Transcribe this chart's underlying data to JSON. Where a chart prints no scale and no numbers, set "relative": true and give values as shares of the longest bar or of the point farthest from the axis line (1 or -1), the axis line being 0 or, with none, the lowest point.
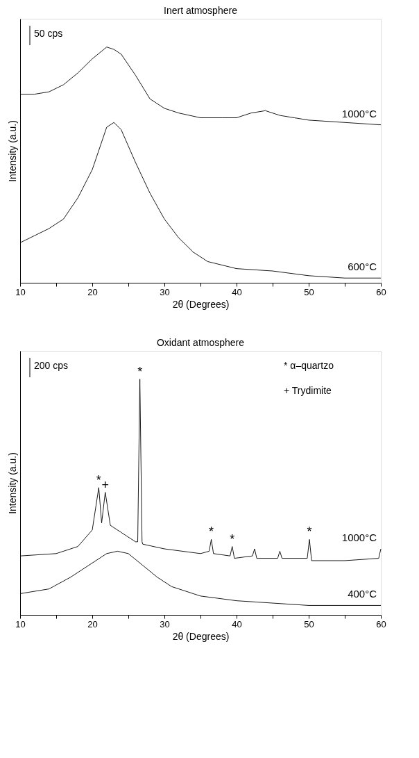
{
  "chart_data": [
    {
      "type": "line",
      "title": "Inert atmosphere",
      "xlabel": "2θ (Degrees)",
      "ylabel": "Intensity (a.u.)",
      "relative": true,
      "grid": false,
      "marker": "none",
      "line_style": "solid",
      "tick_labels": "x",
      "xlim": [
        10,
        60
      ],
      "xticks": [
        10,
        {
          "value": 15,
          "label": null
        },
        20,
        {
          "value": 25,
          "label": null
        },
        30,
        {
          "value": 35,
          "label": null
        },
        40,
        {
          "value": 45,
          "label": null
        },
        50,
        {
          "value": 55,
          "label": null
        },
        60
      ],
      "annotations": [
        "50 cps"
      ],
      "series": [
        {
          "name": "1000°C",
          "color": "#000000",
          "x": [
            10,
            12,
            14,
            16,
            18,
            20,
            22,
            23,
            24,
            26,
            28,
            30,
            32,
            35,
            38,
            40,
            42,
            44,
            46,
            48,
            50,
            55,
            60
          ],
          "values": [
            0.8,
            0.8,
            0.81,
            0.84,
            0.89,
            0.95,
            1.0,
            0.99,
            0.97,
            0.88,
            0.78,
            0.74,
            0.72,
            0.7,
            0.7,
            0.7,
            0.72,
            0.73,
            0.71,
            0.7,
            0.69,
            0.68,
            0.67
          ]
        },
        {
          "name": "600°C",
          "color": "#000000",
          "x": [
            10,
            12,
            14,
            16,
            18,
            20,
            22,
            23,
            24,
            26,
            28,
            30,
            32,
            34,
            36,
            40,
            45,
            50,
            55,
            60
          ],
          "values": [
            0.17,
            0.2,
            0.23,
            0.27,
            0.36,
            0.48,
            0.66,
            0.68,
            0.65,
            0.51,
            0.38,
            0.27,
            0.19,
            0.13,
            0.09,
            0.06,
            0.05,
            0.03,
            0.02,
            0.02
          ]
        }
      ]
    },
    {
      "type": "line",
      "title": "Oxidant atmosphere",
      "xlabel": "2θ (Degrees)",
      "ylabel": "Intensity (a.u.)",
      "relative": true,
      "grid": false,
      "marker": "none",
      "line_style": "solid",
      "tick_labels": "x",
      "xlim": [
        10,
        60
      ],
      "xticks": [
        10,
        {
          "value": 15,
          "label": null
        },
        20,
        {
          "value": 25,
          "label": null
        },
        30,
        {
          "value": 35,
          "label": null
        },
        40,
        {
          "value": 45,
          "label": null
        },
        50,
        {
          "value": 55,
          "label": null
        },
        60
      ],
      "annotations": [
        "200 cps",
        "* α–quartzo",
        "+ Trydimite",
        {
          "text": "*",
          "x": 20.9,
          "y": 0.54
        },
        {
          "text": "+",
          "x": 21.8,
          "y": 0.52
        },
        {
          "text": "*",
          "x": 26.6,
          "y": 1.0
        },
        {
          "text": "*",
          "x": 36.5,
          "y": 0.32
        },
        {
          "text": "*",
          "x": 39.4,
          "y": 0.29
        },
        {
          "text": "*",
          "x": 50.1,
          "y": 0.32
        }
      ],
      "series": [
        {
          "name": "1000°C",
          "color": "#000000",
          "x": [
            10,
            15,
            18,
            20,
            20.9,
            21.3,
            21.8,
            22.5,
            24,
            26,
            26.3,
            26.6,
            26.9,
            27,
            30,
            35,
            36.2,
            36.5,
            36.8,
            39.1,
            39.4,
            39.7,
            42.2,
            42.5,
            42.8,
            45.7,
            46,
            46.3,
            49.8,
            50.1,
            50.4,
            55,
            59.7,
            60
          ],
          "values": [
            0.25,
            0.26,
            0.29,
            0.36,
            0.54,
            0.39,
            0.52,
            0.38,
            0.35,
            0.31,
            0.31,
            1.0,
            0.31,
            0.3,
            0.28,
            0.26,
            0.27,
            0.32,
            0.26,
            0.25,
            0.29,
            0.24,
            0.25,
            0.28,
            0.24,
            0.24,
            0.27,
            0.24,
            0.24,
            0.32,
            0.23,
            0.23,
            0.24,
            0.28
          ]
        },
        {
          "name": "400°C",
          "color": "#000000",
          "x": [
            10,
            14,
            17,
            20,
            22,
            23.5,
            25,
            27,
            29,
            31,
            35,
            40,
            50,
            60
          ],
          "values": [
            0.09,
            0.11,
            0.16,
            0.22,
            0.26,
            0.27,
            0.26,
            0.21,
            0.16,
            0.12,
            0.08,
            0.06,
            0.04,
            0.04
          ]
        }
      ]
    }
  ]
}
